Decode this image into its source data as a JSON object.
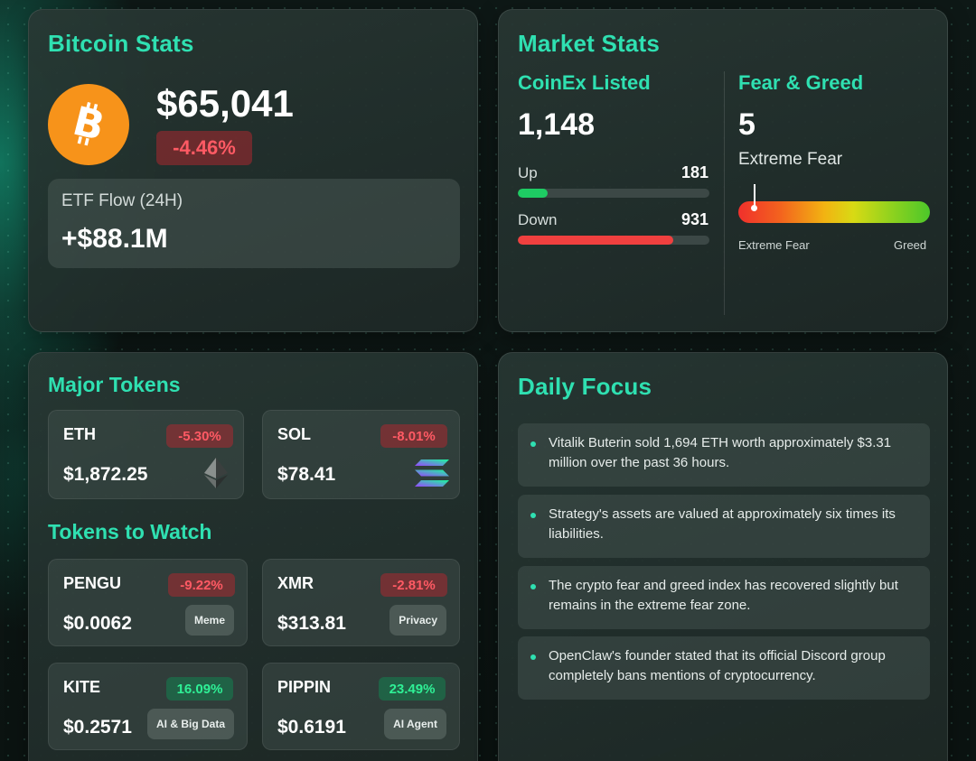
{
  "bitcoin": {
    "title": "Bitcoin Stats",
    "price": "$65,041",
    "change": "-4.46%",
    "etf_label": "ETF Flow (24H)",
    "etf_value": "+$88.1M"
  },
  "market": {
    "title": "Market Stats",
    "coinex": {
      "label": "CoinEx Listed",
      "total": "1,148",
      "up_label": "Up",
      "up_value": "181",
      "down_label": "Down",
      "down_value": "931"
    },
    "fear_greed": {
      "label": "Fear & Greed",
      "value": "5",
      "status": "Extreme Fear",
      "min_label": "Extreme Fear",
      "max_label": "Greed",
      "index": 5
    }
  },
  "major_tokens": {
    "title": "Major Tokens",
    "items": [
      {
        "symbol": "ETH",
        "change": "-5.30%",
        "price": "$1,872.25",
        "icon": "ethereum-icon"
      },
      {
        "symbol": "SOL",
        "change": "-8.01%",
        "price": "$78.41",
        "icon": "solana-icon"
      }
    ]
  },
  "watch_tokens": {
    "title": "Tokens to Watch",
    "items": [
      {
        "symbol": "PENGU",
        "change": "-9.22%",
        "price": "$0.0062",
        "tag": "Meme"
      },
      {
        "symbol": "XMR",
        "change": "-2.81%",
        "price": "$313.81",
        "tag": "Privacy"
      },
      {
        "symbol": "KITE",
        "change": "16.09%",
        "price": "$0.2571",
        "tag": "AI & Big Data"
      },
      {
        "symbol": "PIPPIN",
        "change": "23.49%",
        "price": "$0.6191",
        "tag": "AI Agent"
      }
    ]
  },
  "daily_focus": {
    "title": "Daily Focus",
    "items": [
      "Vitalik Buterin sold 1,694 ETH worth approximately $3.31 million over the past 36 hours.",
      "Strategy's assets are valued at approximately six times its liabilities.",
      "The crypto fear and greed index has recovered slightly but remains in the extreme fear zone.",
      "OpenClaw's founder stated that its official Discord group completely bans mentions of cryptocurrency."
    ]
  },
  "colors": {
    "accent": "#2fe0b1",
    "negative": "#ff5a64",
    "positive": "#2ff096",
    "bitcoin": "#f7931a"
  }
}
